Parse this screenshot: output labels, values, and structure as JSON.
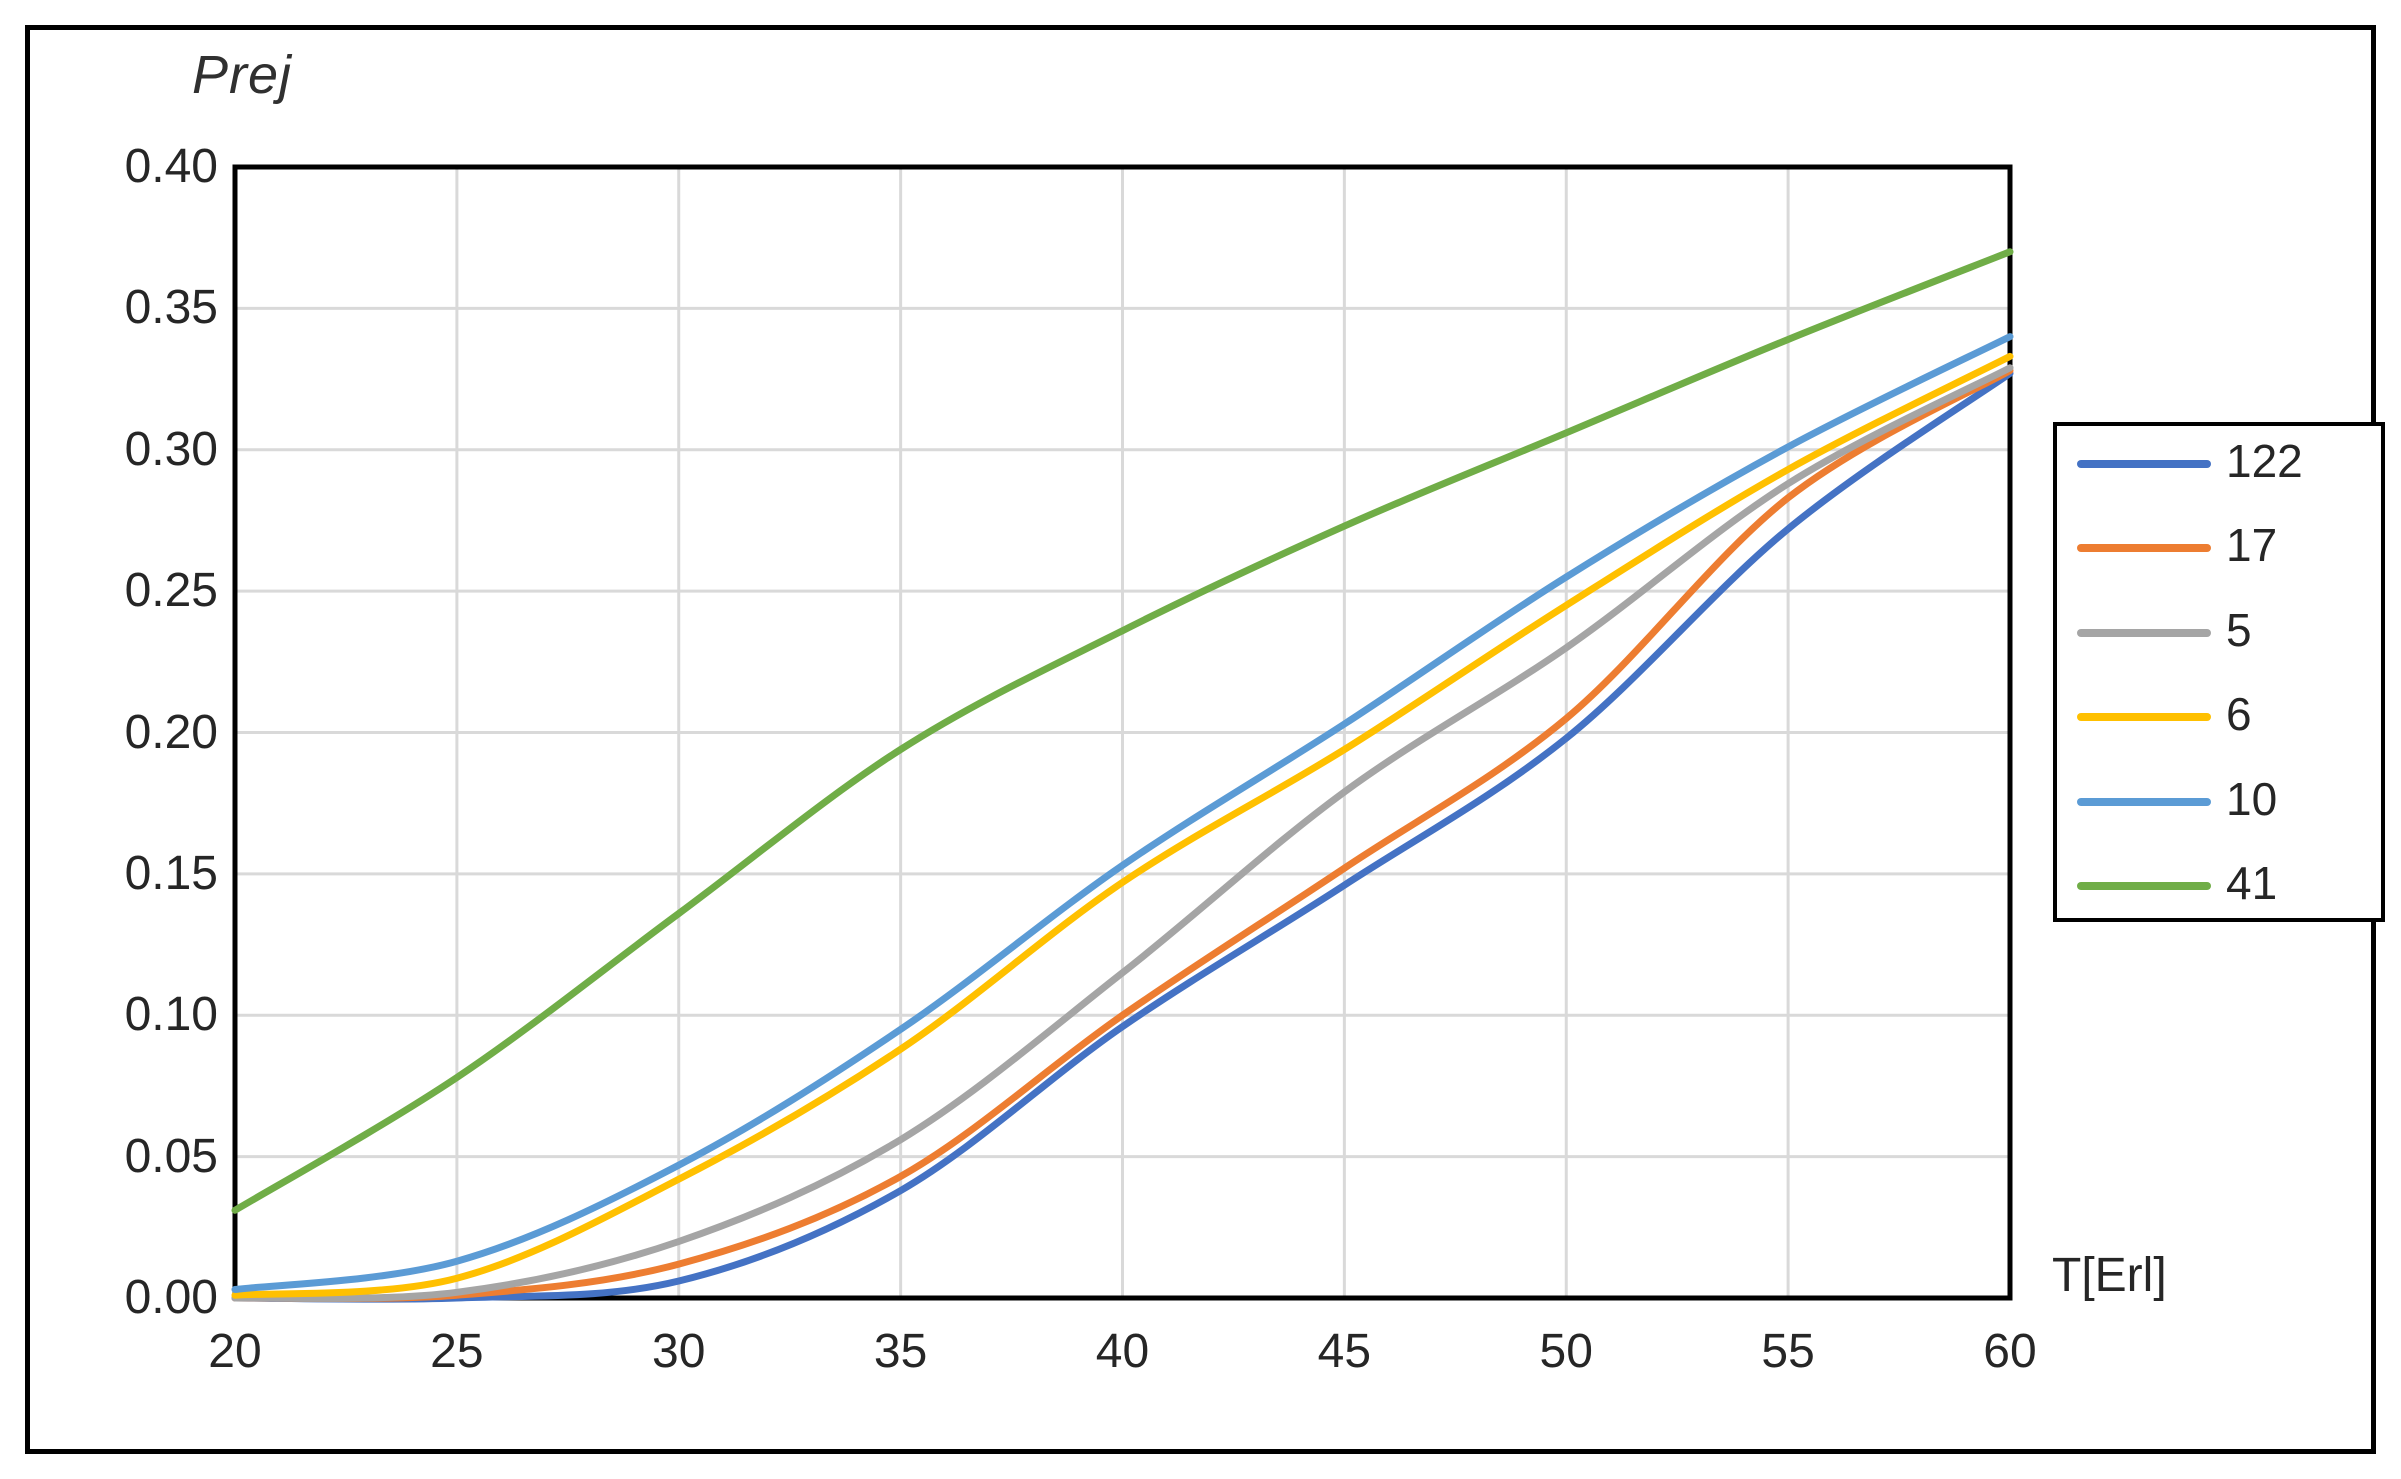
{
  "chart_data": {
    "type": "line",
    "title": "Prej",
    "xlabel": "T[Erl]",
    "ylabel": "Prej",
    "x": [
      20,
      25,
      30,
      35,
      40,
      45,
      50,
      55,
      60
    ],
    "x_tick_labels": [
      "20",
      "25",
      "30",
      "35",
      "40",
      "45",
      "50",
      "55",
      "60"
    ],
    "y_tick_labels": [
      "0.00",
      "0.05",
      "0.10",
      "0.15",
      "0.20",
      "0.25",
      "0.30",
      "0.35",
      "0.40"
    ],
    "xlim": [
      20,
      60
    ],
    "ylim": [
      0,
      0.4
    ],
    "grid": true,
    "grid_color": "#D9D9D9",
    "axis_color": "#000000",
    "legend_position": "right",
    "legend_entries": [
      "122",
      "17",
      "5",
      "6",
      "10",
      "41"
    ],
    "series": [
      {
        "name": "122",
        "color": "#4472C4",
        "values": [
          0.0,
          0.0,
          0.006,
          0.038,
          0.096,
          0.146,
          0.198,
          0.272,
          0.327
        ]
      },
      {
        "name": "17",
        "color": "#ED7D31",
        "values": [
          0.0,
          0.001,
          0.012,
          0.043,
          0.1,
          0.152,
          0.205,
          0.283,
          0.328
        ]
      },
      {
        "name": "5",
        "color": "#A5A5A5",
        "values": [
          0.0,
          0.002,
          0.02,
          0.056,
          0.115,
          0.179,
          0.23,
          0.288,
          0.329
        ]
      },
      {
        "name": "6",
        "color": "#FFC000",
        "values": [
          0.001,
          0.007,
          0.042,
          0.088,
          0.147,
          0.194,
          0.245,
          0.293,
          0.333
        ]
      },
      {
        "name": "10",
        "color": "#5B9BD5",
        "values": [
          0.003,
          0.013,
          0.047,
          0.095,
          0.153,
          0.203,
          0.255,
          0.301,
          0.34
        ]
      },
      {
        "name": "41",
        "color": "#70AD47",
        "values": [
          0.031,
          0.078,
          0.136,
          0.194,
          0.236,
          0.273,
          0.306,
          0.339,
          0.37
        ]
      }
    ]
  }
}
